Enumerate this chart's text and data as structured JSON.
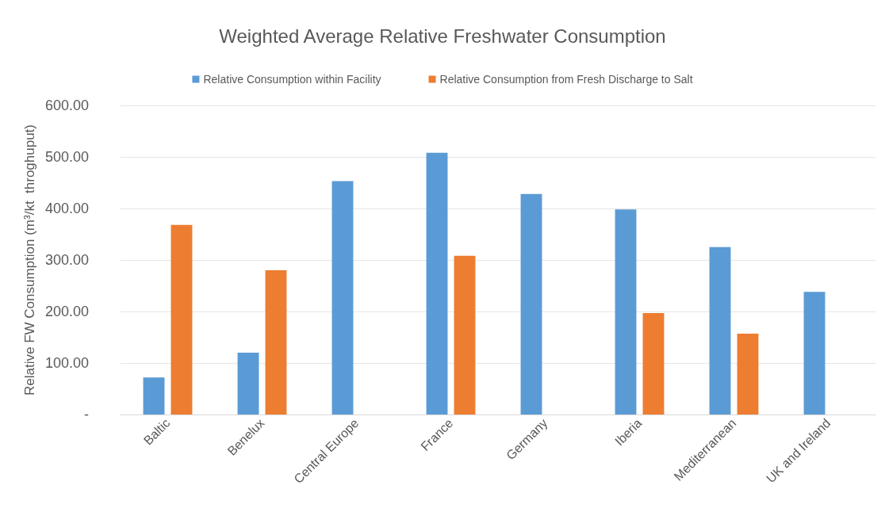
{
  "chart_data": {
    "type": "bar",
    "title": "Weighted Average Relative Freshwater Consumption",
    "ylabel": "Relative FW Consumption (m³/kt  throghuput)",
    "categories": [
      "Baltic",
      "Benelux",
      "Central Europe",
      "France",
      "Germany",
      "Iberia",
      "Mediterranean",
      "UK and Ireland"
    ],
    "series": [
      {
        "name": "Relative Consumption within Facility",
        "color": "#5b9bd5",
        "values": [
          72,
          120,
          453,
          508,
          428,
          398,
          325,
          238
        ]
      },
      {
        "name": "Relative Consumption from Fresh Discharge to Salt",
        "color": "#ed7d31",
        "values": [
          368,
          280,
          null,
          308,
          null,
          197,
          157,
          null
        ]
      }
    ],
    "ylim": [
      0,
      600
    ],
    "yticks": [
      {
        "value": 0,
        "label": "-"
      },
      {
        "value": 100,
        "label": "100.00"
      },
      {
        "value": 200,
        "label": "200.00"
      },
      {
        "value": 300,
        "label": "300.00"
      },
      {
        "value": 400,
        "label": "400.00"
      },
      {
        "value": 500,
        "label": "500.00"
      },
      {
        "value": 600,
        "label": "600.00"
      }
    ],
    "grid": "y",
    "legend": "top"
  }
}
